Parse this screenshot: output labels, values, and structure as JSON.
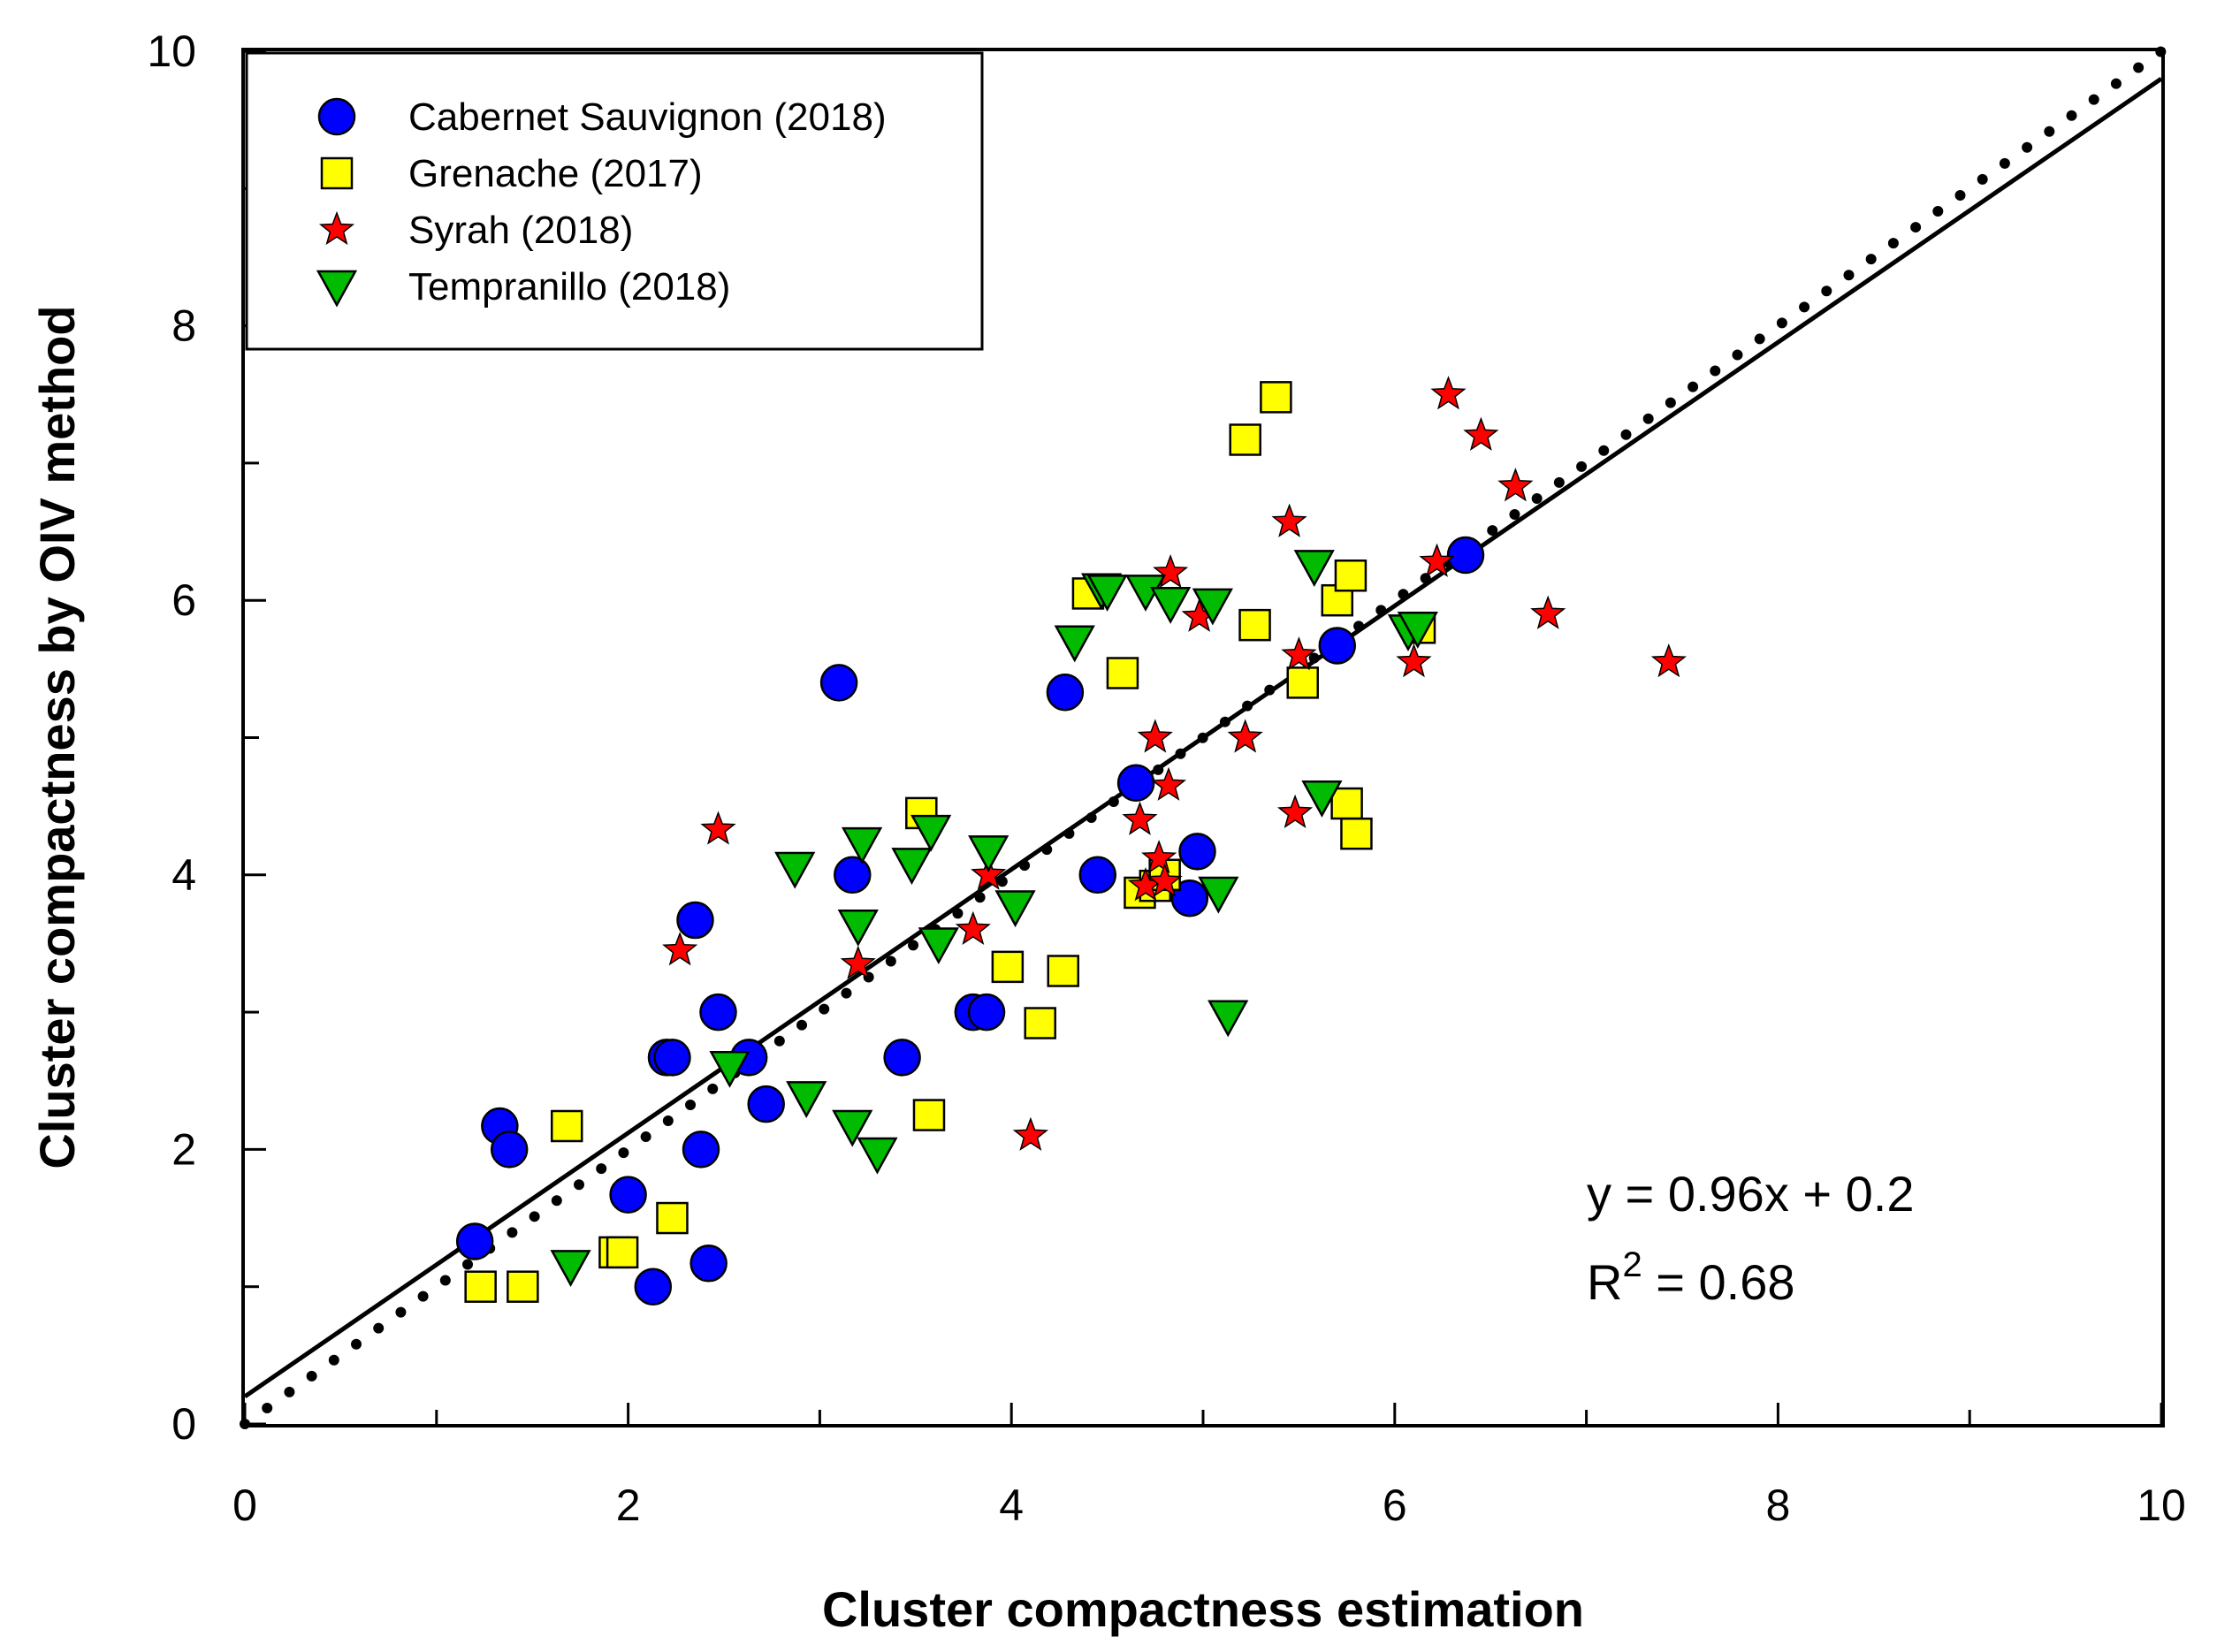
{
  "chart_data": {
    "type": "scatter",
    "title": "",
    "xlabel": "Cluster compactness estimation",
    "ylabel": "Cluster compactness by OIV method",
    "xlim": [
      0,
      10
    ],
    "ylim": [
      0,
      10
    ],
    "x_ticks": [
      "0",
      "2",
      "4",
      "6",
      "8",
      "10"
    ],
    "y_ticks": [
      "0",
      "2",
      "4",
      "6",
      "8",
      "10"
    ],
    "grid": false,
    "legend_position": "top-left",
    "series": [
      {
        "name": "Cabernet Sauvignon (2018)",
        "marker": "circle",
        "color": "#0000ff",
        "points": [
          [
            1.2,
            1.33
          ],
          [
            1.33,
            2.17
          ],
          [
            1.38,
            2.0
          ],
          [
            2.0,
            1.67
          ],
          [
            2.13,
            1.0
          ],
          [
            2.2,
            2.67
          ],
          [
            2.23,
            2.67
          ],
          [
            2.35,
            3.67
          ],
          [
            2.38,
            2.0
          ],
          [
            2.42,
            1.17
          ],
          [
            2.47,
            3.0
          ],
          [
            2.63,
            2.67
          ],
          [
            2.72,
            2.33
          ],
          [
            3.1,
            5.4
          ],
          [
            3.17,
            4.0
          ],
          [
            3.43,
            2.67
          ],
          [
            3.8,
            3.0
          ],
          [
            3.87,
            3.0
          ],
          [
            4.28,
            5.33
          ],
          [
            4.45,
            4.0
          ],
          [
            4.65,
            4.67
          ],
          [
            4.93,
            3.83
          ],
          [
            4.97,
            4.17
          ],
          [
            5.7,
            5.67
          ],
          [
            6.37,
            6.33
          ]
        ]
      },
      {
        "name": "Grenache (2017)",
        "marker": "square",
        "color": "#ffff00",
        "points": [
          [
            1.23,
            1.0
          ],
          [
            1.45,
            1.0
          ],
          [
            1.68,
            2.17
          ],
          [
            1.93,
            1.25
          ],
          [
            1.97,
            1.25
          ],
          [
            2.23,
            1.5
          ],
          [
            3.53,
            4.45
          ],
          [
            3.57,
            2.25
          ],
          [
            3.98,
            3.33
          ],
          [
            4.15,
            2.92
          ],
          [
            4.27,
            3.3
          ],
          [
            4.4,
            6.05
          ],
          [
            4.58,
            5.47
          ],
          [
            4.67,
            3.87
          ],
          [
            4.75,
            3.92
          ],
          [
            4.8,
            4.0
          ],
          [
            5.22,
            7.17
          ],
          [
            5.27,
            5.82
          ],
          [
            5.38,
            7.48
          ],
          [
            5.52,
            5.4
          ],
          [
            5.7,
            6.0
          ],
          [
            5.75,
            4.52
          ],
          [
            5.77,
            6.18
          ],
          [
            5.8,
            4.3
          ],
          [
            6.13,
            5.8
          ]
        ]
      },
      {
        "name": "Syrah (2018)",
        "marker": "star",
        "color": "#ff0000",
        "points": [
          [
            2.27,
            3.45
          ],
          [
            2.47,
            4.33
          ],
          [
            3.2,
            3.35
          ],
          [
            3.8,
            3.6
          ],
          [
            3.88,
            4.0
          ],
          [
            4.1,
            2.1
          ],
          [
            4.67,
            4.4
          ],
          [
            4.7,
            3.92
          ],
          [
            4.75,
            5.0
          ],
          [
            4.77,
            4.12
          ],
          [
            4.8,
            3.95
          ],
          [
            4.82,
            4.65
          ],
          [
            4.83,
            6.2
          ],
          [
            4.98,
            5.88
          ],
          [
            5.22,
            5.0
          ],
          [
            5.45,
            6.57
          ],
          [
            5.48,
            4.45
          ],
          [
            5.5,
            5.6
          ],
          [
            6.1,
            5.55
          ],
          [
            6.22,
            6.28
          ],
          [
            6.28,
            7.5
          ],
          [
            6.45,
            7.2
          ],
          [
            6.63,
            6.83
          ],
          [
            6.8,
            5.9
          ],
          [
            7.43,
            5.55
          ]
        ]
      },
      {
        "name": "Tempranillo (2018)",
        "marker": "triangle-down",
        "color": "#00bb00",
        "points": [
          [
            1.7,
            1.15
          ],
          [
            2.53,
            2.6
          ],
          [
            2.87,
            4.05
          ],
          [
            2.93,
            2.38
          ],
          [
            3.17,
            2.17
          ],
          [
            3.2,
            3.63
          ],
          [
            3.22,
            4.23
          ],
          [
            3.3,
            1.97
          ],
          [
            3.48,
            4.08
          ],
          [
            3.58,
            4.32
          ],
          [
            3.62,
            3.5
          ],
          [
            3.88,
            4.17
          ],
          [
            4.02,
            3.77
          ],
          [
            4.33,
            5.7
          ],
          [
            4.47,
            6.08
          ],
          [
            4.5,
            6.07
          ],
          [
            4.7,
            6.07
          ],
          [
            4.83,
            5.98
          ],
          [
            5.05,
            5.97
          ],
          [
            5.08,
            3.87
          ],
          [
            5.13,
            2.97
          ],
          [
            5.58,
            6.25
          ],
          [
            5.62,
            4.57
          ],
          [
            6.07,
            5.78
          ],
          [
            6.12,
            5.8
          ]
        ]
      }
    ],
    "lines": [
      {
        "name": "regression",
        "style": "solid",
        "slope": 0.96,
        "intercept": 0.2
      },
      {
        "name": "1:1",
        "style": "dotted",
        "slope": 1.0,
        "intercept": 0.0
      }
    ],
    "annotations": {
      "equation": "y = 0.96x + 0.2",
      "r2_prefix": "R",
      "r2_exponent": "2",
      "r2_value": " = 0.68"
    }
  }
}
